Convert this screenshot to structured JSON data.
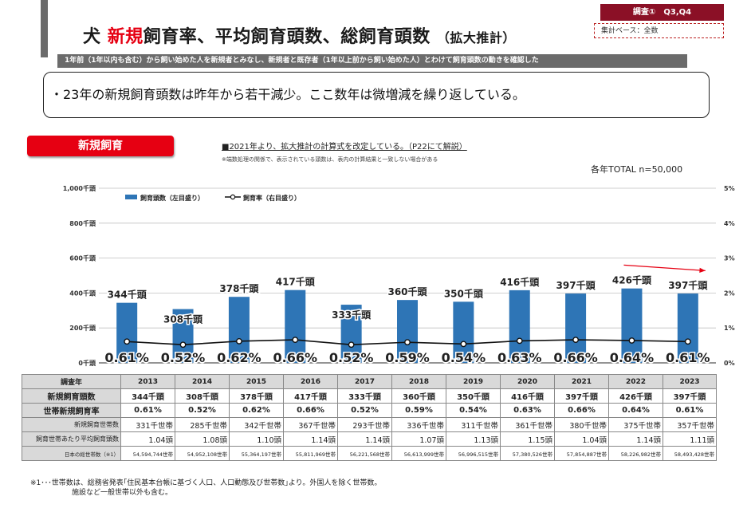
{
  "header": {
    "title_prefix": "犬",
    "title_red": "新規",
    "title_main": "飼育率、平均飼育頭数、総飼育頭数",
    "title_small": "（拡大推計）",
    "survey_badge": "調査①　Q3,Q4",
    "base_label": "集計ベース：全数",
    "subtitle": "1年前（1年以内も含む）から飼い始めた人を新規者とみなし、新規者と既存者（1年以上前から飼い始めた人）とわけて飼育頭数の動きを確認した"
  },
  "summary": "・23年の新規飼育頭数は昨年から若干減少。ここ数年は微増減を繰り返している。",
  "section": {
    "label": "新規飼育",
    "note1": "■2021年より、拡大推計の計算式を改定している。（P22にて解説）",
    "note2": "※端数処理の関係で、表示されている頭数は、表内の計算結果と一致しない場合がある",
    "total": "各年TOTAL n=50,000"
  },
  "chart_data": {
    "type": "bar+line",
    "categories": [
      "2013",
      "2014",
      "2015",
      "2016",
      "2017",
      "2018",
      "2019",
      "2020",
      "2021",
      "2022",
      "2023"
    ],
    "series": [
      {
        "name": "飼育頭数（左目盛り）",
        "type": "bar",
        "axis": "left",
        "values": [
          344,
          308,
          378,
          417,
          333,
          360,
          350,
          416,
          397,
          426,
          397
        ],
        "labels": [
          "344千頭",
          "308千頭",
          "378千頭",
          "417千頭",
          "333千頭",
          "360千頭",
          "350千頭",
          "416千頭",
          "397千頭",
          "426千頭",
          "397千頭"
        ]
      },
      {
        "name": "飼育率（右目盛り）",
        "type": "line",
        "axis": "right",
        "values": [
          0.61,
          0.52,
          0.62,
          0.66,
          0.52,
          0.59,
          0.54,
          0.63,
          0.66,
          0.64,
          0.61
        ],
        "labels": [
          "0.61%",
          "0.52%",
          "0.62%",
          "0.66%",
          "0.52%",
          "0.59%",
          "0.54%",
          "0.63%",
          "0.66%",
          "0.64%",
          "0.61%"
        ]
      }
    ],
    "y_left": {
      "ticks": [
        "0千頭",
        "200千頭",
        "400千頭",
        "600千頭",
        "800千頭",
        "1,000千頭"
      ],
      "lim": [
        0,
        1000
      ]
    },
    "y_right": {
      "ticks": [
        "0%",
        "1%",
        "2%",
        "3%",
        "4%",
        "5%"
      ],
      "lim": [
        0,
        5
      ]
    },
    "legend": [
      "飼育頭数（左目盛り）",
      "飼育率（右目盛り）"
    ],
    "colors": {
      "bar": "#2e75b6",
      "line": "#111111",
      "arrow": "#e60012"
    },
    "annotation": "arrow-down-2022-2023"
  },
  "table": {
    "header": [
      "調査年",
      "2013",
      "2014",
      "2015",
      "2016",
      "2017",
      "2018",
      "2019",
      "2020",
      "2021",
      "2022",
      "2023"
    ],
    "rows": [
      {
        "label": "新規飼育頭数",
        "values": [
          "344千頭",
          "308千頭",
          "378千頭",
          "417千頭",
          "333千頭",
          "360千頭",
          "350千頭",
          "416千頭",
          "397千頭",
          "426千頭",
          "397千頭"
        ]
      },
      {
        "label": "世帯新規飼育率",
        "values": [
          "0.61%",
          "0.52%",
          "0.62%",
          "0.66%",
          "0.52%",
          "0.59%",
          "0.54%",
          "0.63%",
          "0.66%",
          "0.64%",
          "0.61%"
        ]
      },
      {
        "label": "新規飼育世帯数",
        "values": [
          "331千世帯",
          "285千世帯",
          "342千世帯",
          "367千世帯",
          "293千世帯",
          "336千世帯",
          "311千世帯",
          "361千世帯",
          "380千世帯",
          "375千世帯",
          "357千世帯"
        ]
      },
      {
        "label": "飼育世帯あたり平均飼育頭数",
        "values": [
          "1.04頭",
          "1.08頭",
          "1.10頭",
          "1.14頭",
          "1.14頭",
          "1.07頭",
          "1.13頭",
          "1.15頭",
          "1.04頭",
          "1.14頭",
          "1.11頭"
        ]
      },
      {
        "label": "日本の総世帯数（※1）",
        "values": [
          "54,594,744世帯",
          "54,952,108世帯",
          "55,364,197世帯",
          "55,811,969世帯",
          "56,221,568世帯",
          "56,613,999世帯",
          "56,996,515世帯",
          "57,380,526世帯",
          "57,854,887世帯",
          "58,226,982世帯",
          "58,493,428世帯"
        ]
      }
    ]
  },
  "footnote": {
    "line1": "※1･･･世帯数は、総務省発表｢住民基本台帳に基づく人口、人口動態及び世帯数｣より。外国人を除く世帯数。",
    "line2": "施設など一般世帯以外も含む。"
  }
}
